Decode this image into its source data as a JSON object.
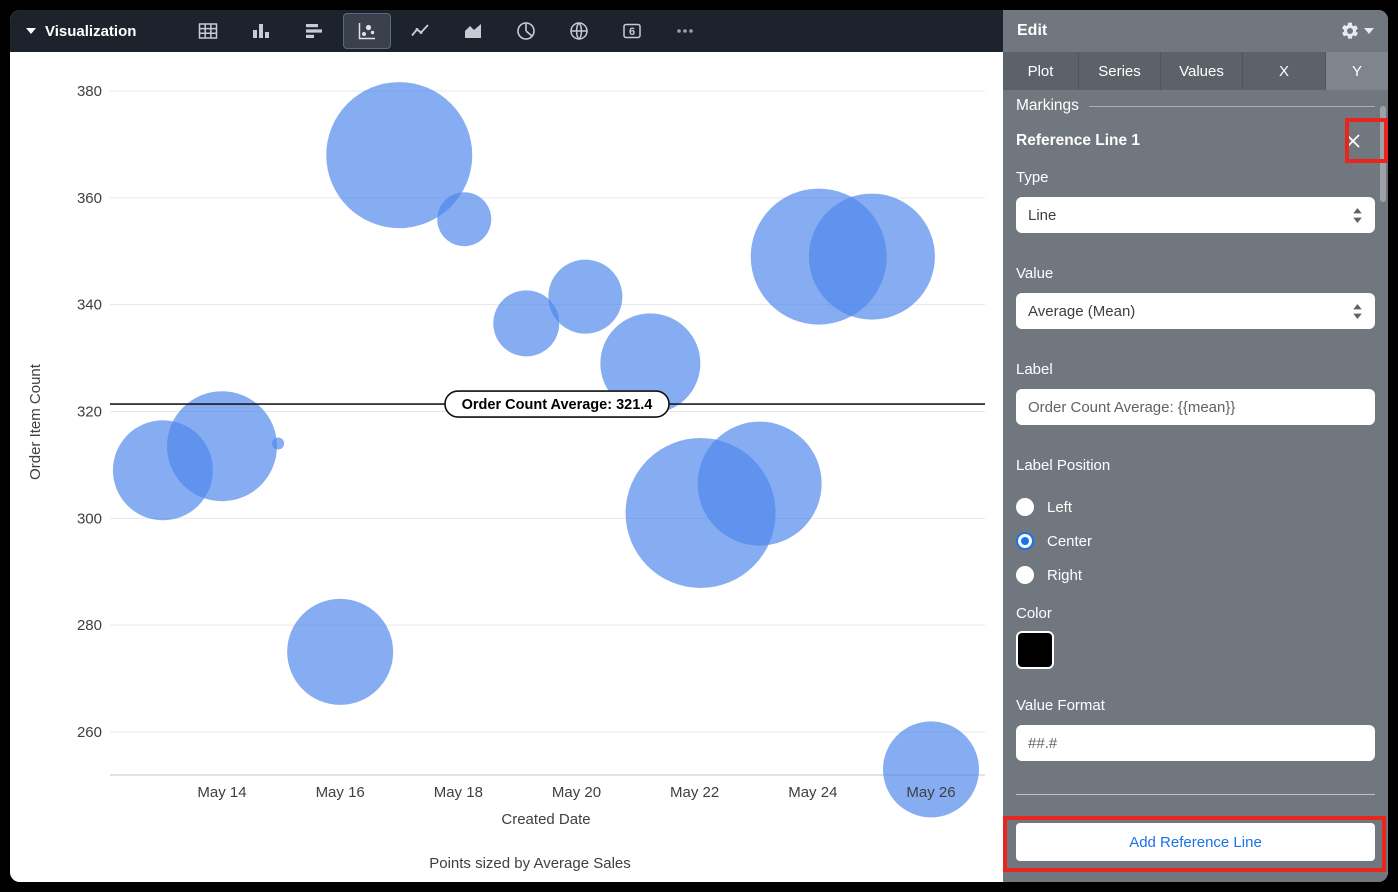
{
  "toolbar": {
    "title": "Visualization",
    "icons": [
      "table-icon",
      "bar-chart-icon",
      "row-chart-icon",
      "scatter-chart-icon",
      "line-chart-icon",
      "area-chart-icon",
      "pie-chart-icon",
      "map-chart-icon",
      "number-chart-icon",
      "more-icon"
    ],
    "selected_icon": "scatter-chart-icon"
  },
  "panel": {
    "title": "Edit",
    "tabs": [
      {
        "label": "Plot",
        "selected": false
      },
      {
        "label": "Series",
        "selected": false
      },
      {
        "label": "Values",
        "selected": false
      },
      {
        "label": "X",
        "selected": false
      },
      {
        "label": "Y",
        "selected": true
      }
    ],
    "markings_label": "Markings",
    "reference_line": {
      "title": "Reference Line 1",
      "type_label": "Type",
      "type_value": "Line",
      "value_label": "Value",
      "value_value": "Average (Mean)",
      "label_label": "Label",
      "label_value": "Order Count Average: {{mean}}",
      "label_position": {
        "label": "Label Position",
        "options": [
          "Left",
          "Center",
          "Right"
        ],
        "selected": "Center"
      },
      "color_label": "Color",
      "color_value": "#000000",
      "value_format_label": "Value Format",
      "value_format_value": "##.#"
    },
    "add_button_label": "Add Reference Line"
  },
  "annotations": [
    {
      "target": "close-reference-line-button",
      "color": "#e8261d"
    },
    {
      "target": "add-reference-line-button",
      "color": "#e8261d"
    }
  ],
  "chart_data": {
    "type": "scatter",
    "title": "",
    "xlabel": "Created Date",
    "ylabel": "Order Item Count",
    "caption": "Points sized by Average Sales",
    "x_ticks": [
      "May 14",
      "May 16",
      "May 18",
      "May 20",
      "May 22",
      "May 24",
      "May 26"
    ],
    "x_tick_days": [
      14,
      16,
      18,
      20,
      22,
      24,
      26
    ],
    "y_ticks": [
      260,
      280,
      300,
      320,
      340,
      360,
      380
    ],
    "ylim": [
      252,
      382
    ],
    "grid": true,
    "legend": false,
    "bubble_color": "#4d86ec",
    "bubble_opacity": 0.68,
    "reference_line": {
      "value": 321.4,
      "label": "Order Count Average: 321.4"
    },
    "points": [
      {
        "day": 17.0,
        "count": 368,
        "r": 73
      },
      {
        "day": 18.1,
        "count": 356,
        "r": 27
      },
      {
        "day": 19.15,
        "count": 336.5,
        "r": 33
      },
      {
        "day": 20.15,
        "count": 341.5,
        "r": 37
      },
      {
        "day": 21.25,
        "count": 329,
        "r": 50
      },
      {
        "day": 24.1,
        "count": 349,
        "r": 68
      },
      {
        "day": 25.0,
        "count": 349,
        "r": 63
      },
      {
        "day": 13.0,
        "count": 309,
        "r": 50
      },
      {
        "day": 14.0,
        "count": 313.5,
        "r": 55
      },
      {
        "day": 14.95,
        "count": 314,
        "r": 6
      },
      {
        "day": 16.0,
        "count": 275,
        "r": 53
      },
      {
        "day": 22.1,
        "count": 301,
        "r": 75
      },
      {
        "day": 23.1,
        "count": 306.5,
        "r": 62
      },
      {
        "day": 26.0,
        "count": 253,
        "r": 48
      }
    ]
  }
}
